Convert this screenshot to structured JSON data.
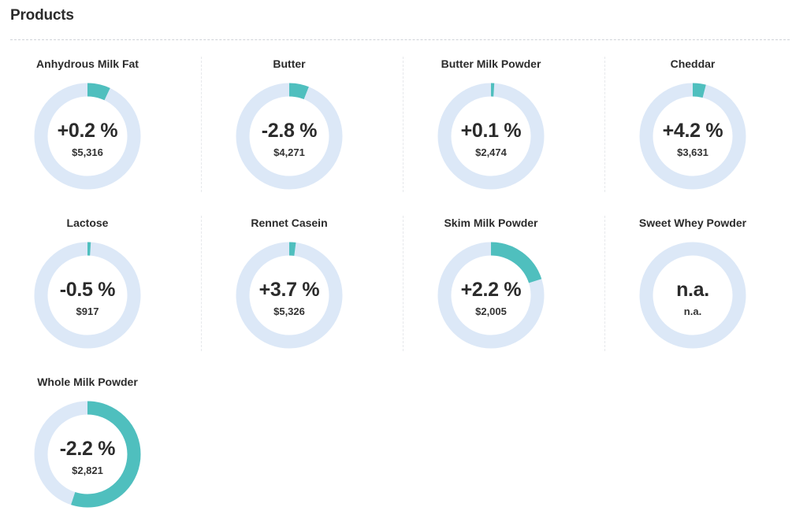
{
  "header": {
    "title": "Products"
  },
  "colors": {
    "track": "#dce8f7",
    "fill": "#4fbfbe",
    "text": "#2b2b2b"
  },
  "products": [
    {
      "name": "Anhydrous Milk Fat",
      "change": "+0.2 %",
      "price": "$5,316",
      "fill_fraction": 0.07
    },
    {
      "name": "Butter",
      "change": "-2.8 %",
      "price": "$4,271",
      "fill_fraction": 0.06
    },
    {
      "name": "Butter Milk Powder",
      "change": "+0.1 %",
      "price": "$2,474",
      "fill_fraction": 0.01
    },
    {
      "name": "Cheddar",
      "change": "+4.2 %",
      "price": "$3,631",
      "fill_fraction": 0.04
    },
    {
      "name": "Lactose",
      "change": "-0.5 %",
      "price": "$917",
      "fill_fraction": 0.01
    },
    {
      "name": "Rennet Casein",
      "change": "+3.7 %",
      "price": "$5,326",
      "fill_fraction": 0.02
    },
    {
      "name": "Skim Milk Powder",
      "change": "+2.2 %",
      "price": "$2,005",
      "fill_fraction": 0.2
    },
    {
      "name": "Sweet Whey Powder",
      "change": "n.a.",
      "price": "n.a.",
      "fill_fraction": 0
    },
    {
      "name": "Whole Milk Powder",
      "change": "-2.2 %",
      "price": "$2,821",
      "fill_fraction": 0.55
    }
  ]
}
